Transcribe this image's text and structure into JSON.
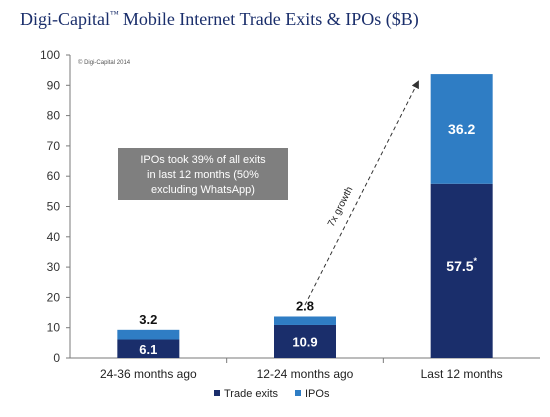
{
  "header": {
    "brand": "Digi-Capital",
    "trademark": "™",
    "title": "Mobile Internet Trade Exits & IPOs ($B)"
  },
  "chart_data": {
    "type": "bar",
    "stacked": true,
    "title": "Mobile Internet Trade Exits & IPOs ($B)",
    "categories": [
      "24-36 months ago",
      "12-24 months ago",
      "Last 12 months"
    ],
    "series": [
      {
        "name": "Trade exits",
        "values": [
          6.1,
          10.9,
          57.5
        ],
        "color": "#1a2e6b"
      },
      {
        "name": "IPOs",
        "values": [
          3.2,
          2.8,
          36.2
        ],
        "color": "#2f7dc4"
      }
    ],
    "ylim": [
      0,
      100
    ],
    "yticks": [
      0,
      10,
      20,
      30,
      40,
      50,
      60,
      70,
      80,
      90,
      100
    ],
    "grid": false,
    "legend_position": "bottom",
    "value_labels": {
      "trade_exits": [
        "6.1",
        "10.9",
        "57.5"
      ],
      "ipos": [
        "3.2",
        "2.8",
        "36.2"
      ],
      "footnote_mark": "*"
    },
    "annotations": {
      "copyright": "© Digi-Capital 2014",
      "callout": [
        "IPOs took 39% of all exits",
        "in last 12 months (50%",
        "excluding WhatsApp)"
      ],
      "growth_label": "7x growth"
    }
  },
  "colors": {
    "trade_exits": "#1a2e6b",
    "ipos": "#2f7dc4",
    "callout_bg": "#7f7f7f",
    "title_text": "#1a2e6b",
    "axis": "#7a7a7a"
  }
}
